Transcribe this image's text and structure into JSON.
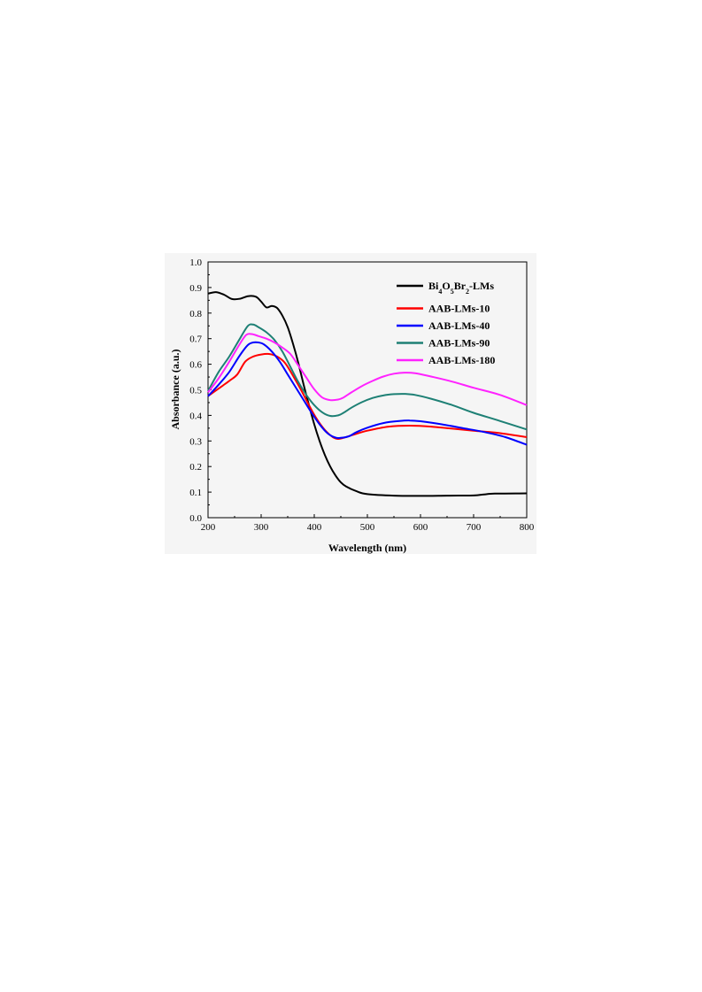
{
  "chart_data": {
    "type": "line",
    "xlabel": "Wavelength (nm)",
    "ylabel": "Absorbance (a.u.)",
    "xlim": [
      200,
      800
    ],
    "ylim": [
      0.0,
      1.0
    ],
    "x_ticks": [
      "200",
      "300",
      "400",
      "500",
      "600",
      "700",
      "800"
    ],
    "y_ticks": [
      "0.0",
      "0.1",
      "0.2",
      "0.3",
      "0.4",
      "0.5",
      "0.6",
      "0.7",
      "0.8",
      "0.9",
      "1.0"
    ],
    "grid": false,
    "legend_position": "top-right",
    "series": [
      {
        "name": "Bi4O5Br2-LMs",
        "label_parts": [
          [
            "Bi",
            "n"
          ],
          [
            "4",
            "sub"
          ],
          [
            "O",
            "n"
          ],
          [
            "5",
            "sub"
          ],
          [
            "Br",
            "n"
          ],
          [
            "2",
            "sub"
          ],
          [
            "-LMs",
            "n"
          ]
        ],
        "color": "#000000",
        "x": [
          200,
          215,
          230,
          245,
          260,
          275,
          290,
          300,
          310,
          320,
          330,
          340,
          350,
          360,
          370,
          380,
          390,
          400,
          410,
          420,
          430,
          440,
          450,
          460,
          480,
          500,
          550,
          600,
          650,
          700,
          720,
          740,
          800
        ],
        "y": [
          0.876,
          0.882,
          0.872,
          0.855,
          0.856,
          0.866,
          0.864,
          0.845,
          0.822,
          0.828,
          0.82,
          0.79,
          0.745,
          0.68,
          0.605,
          0.52,
          0.44,
          0.365,
          0.3,
          0.245,
          0.2,
          0.165,
          0.138,
          0.122,
          0.103,
          0.092,
          0.086,
          0.085,
          0.086,
          0.087,
          0.091,
          0.094,
          0.095
        ]
      },
      {
        "name": "AAB-LMs-10",
        "color": "#ff0000",
        "x": [
          200,
          220,
          240,
          255,
          270,
          285,
          300,
          315,
          330,
          345,
          360,
          375,
          390,
          405,
          420,
          435,
          445,
          455,
          470,
          500,
          540,
          580,
          620,
          660,
          700,
          740,
          800
        ],
        "y": [
          0.475,
          0.505,
          0.535,
          0.56,
          0.61,
          0.63,
          0.638,
          0.64,
          0.63,
          0.605,
          0.555,
          0.5,
          0.44,
          0.385,
          0.343,
          0.315,
          0.308,
          0.312,
          0.322,
          0.34,
          0.356,
          0.36,
          0.356,
          0.348,
          0.34,
          0.333,
          0.315
        ]
      },
      {
        "name": "AAB-LMs-40",
        "color": "#0000ff",
        "x": [
          200,
          220,
          240,
          260,
          275,
          285,
          295,
          305,
          320,
          335,
          350,
          365,
          380,
          395,
          410,
          425,
          440,
          450,
          465,
          480,
          500,
          530,
          560,
          580,
          600,
          640,
          680,
          720,
          760,
          800
        ],
        "y": [
          0.475,
          0.52,
          0.57,
          0.635,
          0.675,
          0.685,
          0.685,
          0.678,
          0.65,
          0.61,
          0.56,
          0.51,
          0.46,
          0.41,
          0.365,
          0.33,
          0.313,
          0.312,
          0.318,
          0.335,
          0.352,
          0.37,
          0.378,
          0.38,
          0.377,
          0.365,
          0.35,
          0.335,
          0.315,
          0.285
        ]
      },
      {
        "name": "AAB-LMs-90",
        "color": "#1e8075",
        "x": [
          200,
          220,
          240,
          260,
          275,
          285,
          295,
          310,
          325,
          340,
          355,
          370,
          385,
          400,
          415,
          430,
          445,
          455,
          470,
          490,
          510,
          530,
          550,
          570,
          590,
          620,
          660,
          700,
          750,
          800
        ],
        "y": [
          0.495,
          0.57,
          0.63,
          0.7,
          0.75,
          0.755,
          0.745,
          0.725,
          0.695,
          0.65,
          0.59,
          0.53,
          0.48,
          0.44,
          0.412,
          0.398,
          0.4,
          0.41,
          0.43,
          0.452,
          0.468,
          0.478,
          0.483,
          0.484,
          0.48,
          0.465,
          0.44,
          0.41,
          0.378,
          0.345
        ]
      },
      {
        "name": "AAB-LMs-180",
        "color": "#ff22ff",
        "x": [
          200,
          220,
          240,
          260,
          272,
          282,
          295,
          310,
          325,
          340,
          355,
          370,
          385,
          400,
          415,
          430,
          445,
          455,
          470,
          490,
          510,
          530,
          550,
          570,
          590,
          620,
          660,
          700,
          750,
          800
        ],
        "y": [
          0.49,
          0.545,
          0.61,
          0.68,
          0.715,
          0.718,
          0.71,
          0.7,
          0.685,
          0.665,
          0.64,
          0.595,
          0.548,
          0.502,
          0.47,
          0.46,
          0.462,
          0.47,
          0.49,
          0.515,
          0.535,
          0.552,
          0.563,
          0.567,
          0.565,
          0.552,
          0.532,
          0.508,
          0.48,
          0.44
        ]
      }
    ]
  }
}
